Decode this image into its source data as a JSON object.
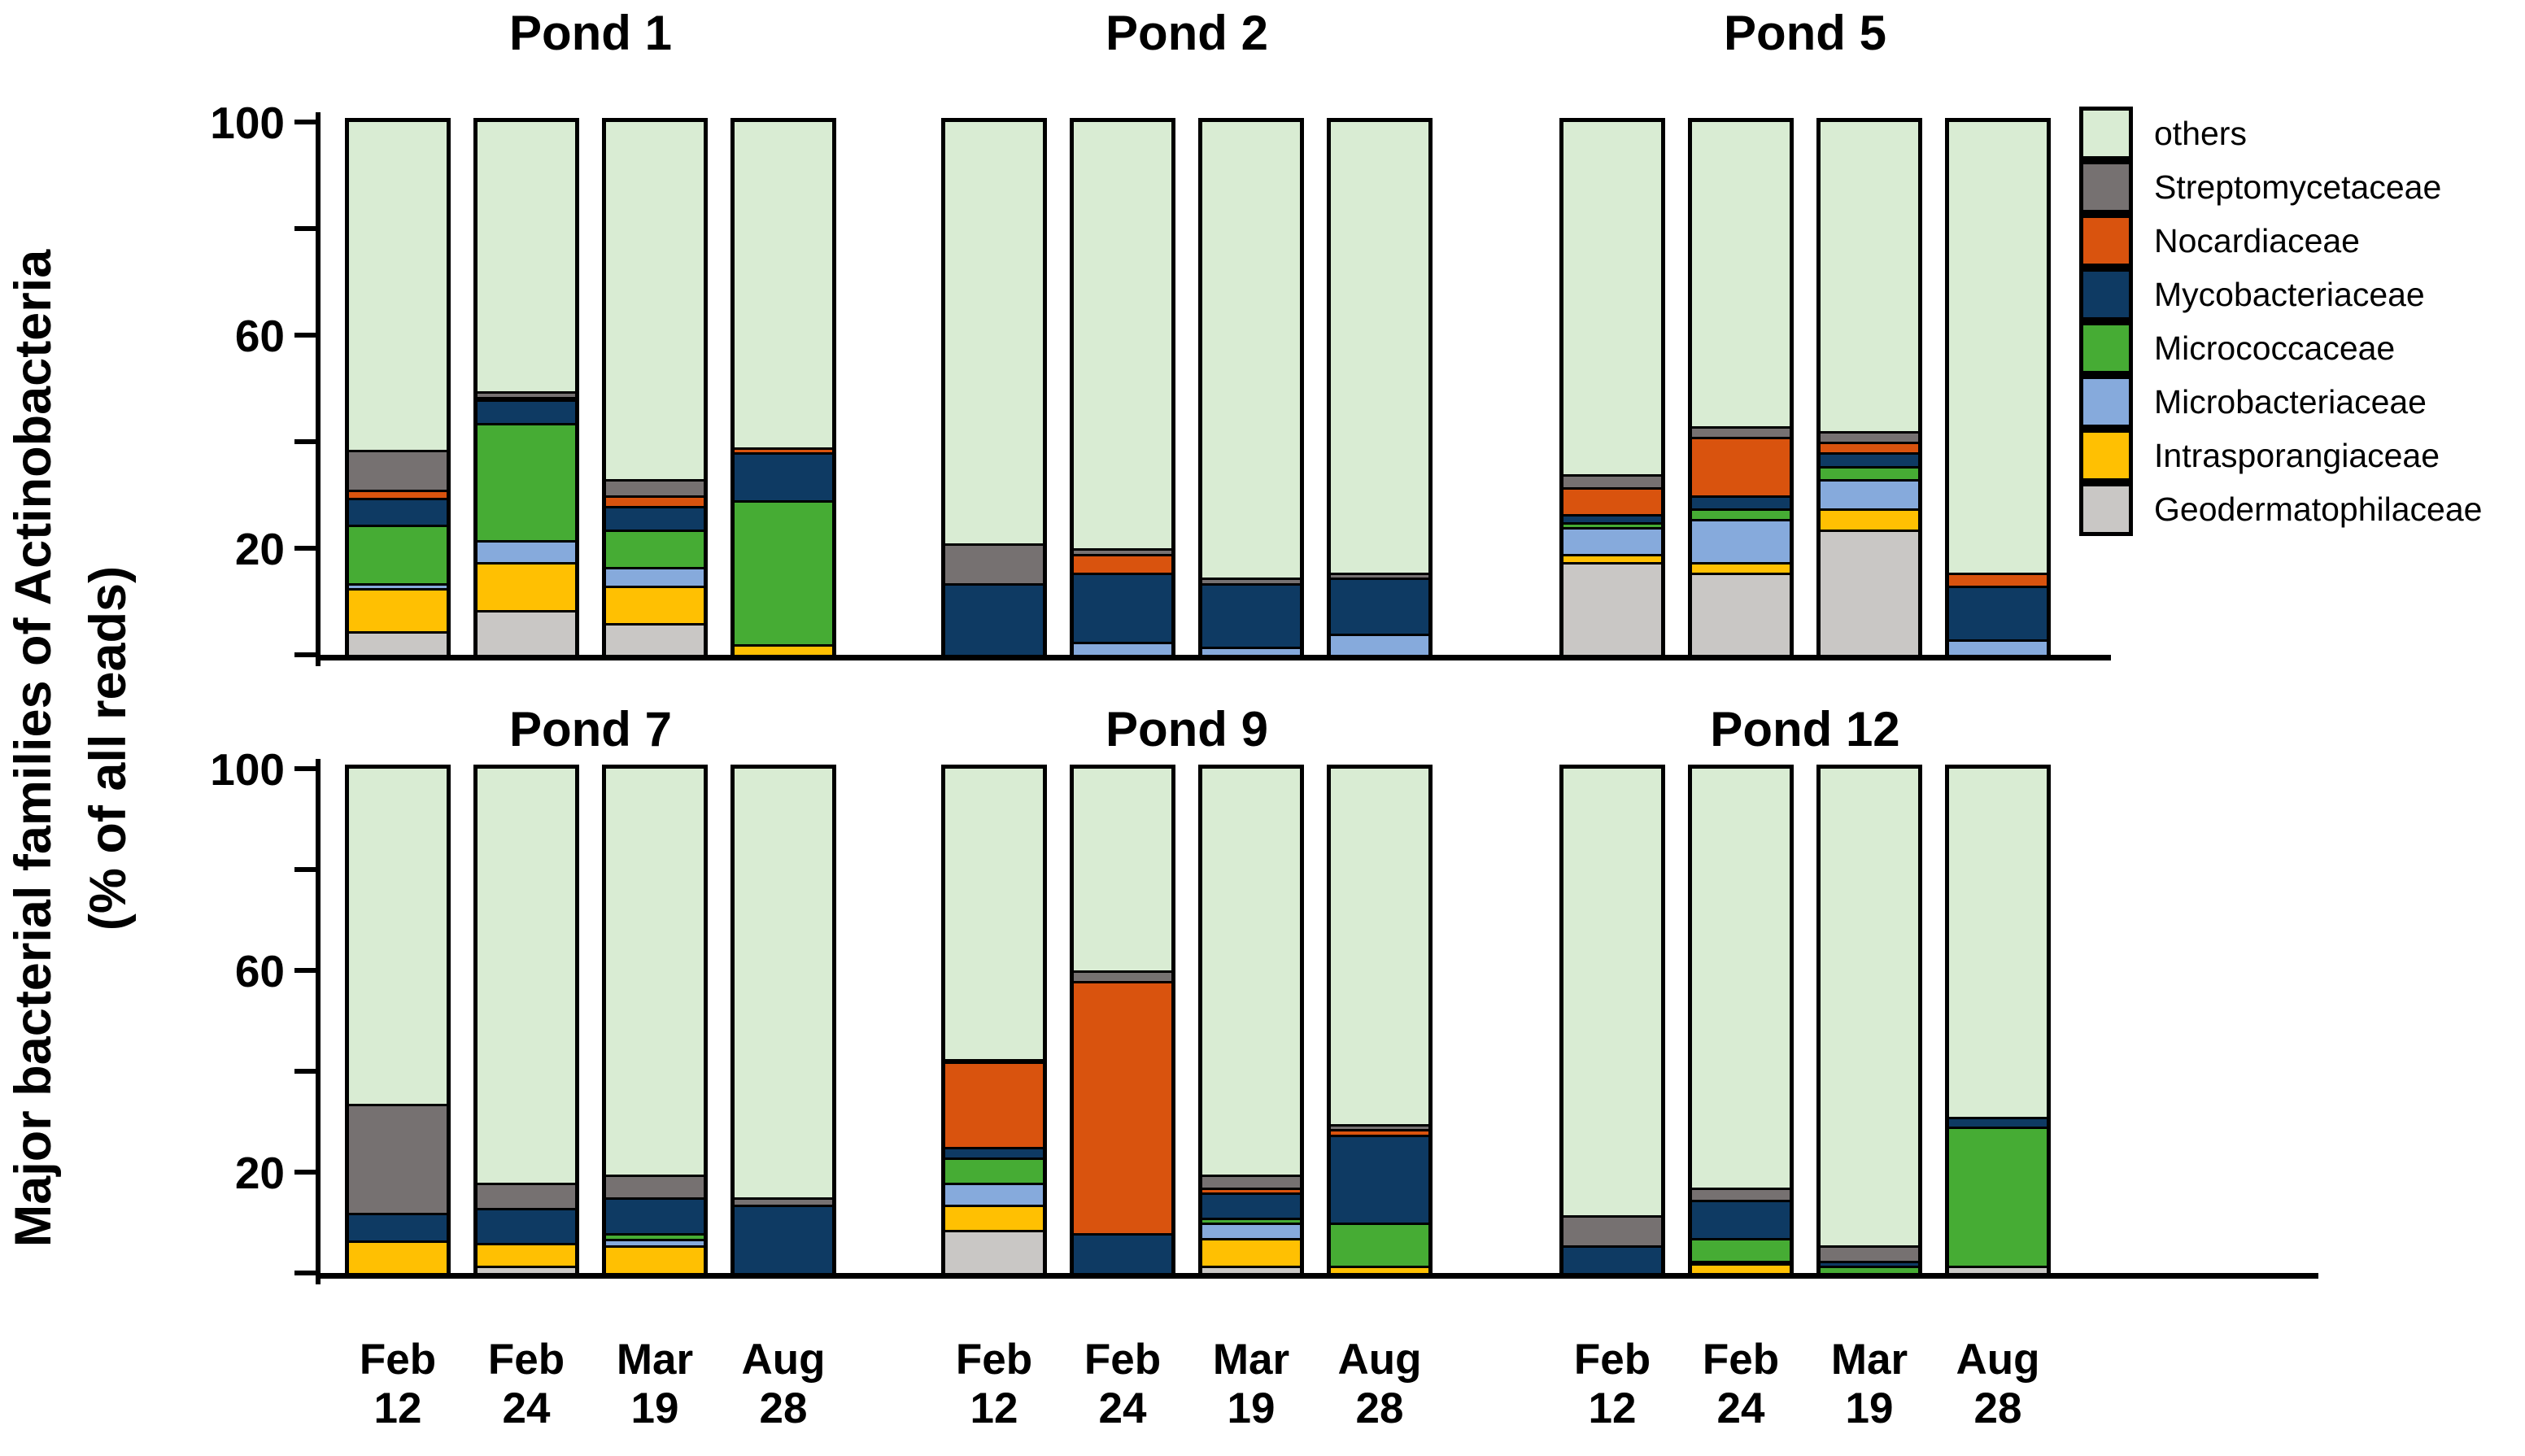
{
  "figure": {
    "ylabel_line1": "Major bacterial families of Actinobacteria",
    "ylabel_line2": "(% of all reads)"
  },
  "chart_data": {
    "type": "bar",
    "stacked": true,
    "orientation": "vertical",
    "ylabel": "Major bacterial families of Actinobacteria (% of all reads)",
    "ylim": [
      0,
      100
    ],
    "y_major_tick_labels": [
      "100",
      "60",
      "20"
    ],
    "y_tick_values": [
      100,
      80,
      60,
      40,
      20,
      0
    ],
    "grid": false,
    "legend_position": "top-right",
    "legend": [
      {
        "label": "others",
        "color": "#d9ecd3"
      },
      {
        "label": "Streptomycetaceae",
        "color": "#767171"
      },
      {
        "label": "Nocardiaceae",
        "color": "#d9530e"
      },
      {
        "label": "Mycobacteriaceae",
        "color": "#0e3a63"
      },
      {
        "label": "Micrococcaceae",
        "color": "#46ac34"
      },
      {
        "label": "Microbacteriaceae",
        "color": "#86aadc"
      },
      {
        "label": "Intrasporangiaceae",
        "color": "#ffc002"
      },
      {
        "label": "Geodermatophilaceae",
        "color": "#c9c7c5"
      }
    ],
    "stack_order_bottom_to_top": [
      "Geodermatophilaceae",
      "Intrasporangiaceae",
      "Microbacteriaceae",
      "Micrococcaceae",
      "Mycobacteriaceae",
      "Nocardiaceae",
      "Streptomycetaceae",
      "others"
    ],
    "categories": [
      "Feb 12",
      "Feb 24",
      "Mar 19",
      "Aug 28"
    ],
    "panels": [
      {
        "title": "Pond 1",
        "row": 0,
        "values_pct": [
          [
            4,
            8,
            1,
            11,
            5,
            1.5,
            7.5,
            62
          ],
          [
            8,
            9,
            4,
            22,
            4.5,
            0.5,
            1,
            51
          ],
          [
            5.5,
            7,
            3.5,
            7,
            4.5,
            2,
            3,
            67.5
          ],
          [
            0,
            1.5,
            0,
            27,
            9,
            1,
            0,
            61.5
          ]
        ]
      },
      {
        "title": "Pond 2",
        "row": 0,
        "values_pct": [
          [
            0,
            0,
            0,
            0,
            13,
            0,
            7.5,
            79.5
          ],
          [
            0,
            0,
            2,
            0,
            13,
            3.5,
            1,
            80.5
          ],
          [
            0,
            0,
            1,
            0,
            12,
            0,
            1,
            86
          ],
          [
            0,
            0,
            3.5,
            0,
            10.5,
            0,
            1,
            85
          ]
        ]
      },
      {
        "title": "Pond 5",
        "row": 0,
        "values_pct": [
          [
            17,
            1.5,
            5,
            1,
            1.5,
            5,
            2.5,
            66.5
          ],
          [
            15,
            2,
            8,
            2,
            2.5,
            11,
            2,
            57.5
          ],
          [
            23,
            4,
            5.5,
            2.5,
            2.5,
            2,
            2,
            58.5
          ],
          [
            0,
            0,
            2.5,
            0,
            10,
            2.5,
            0,
            85
          ]
        ]
      },
      {
        "title": "Pond 7",
        "row": 1,
        "values_pct": [
          [
            0,
            6,
            0,
            0,
            5.5,
            0,
            21.5,
            67
          ],
          [
            1,
            4.5,
            0,
            0,
            7,
            0,
            5,
            82.5
          ],
          [
            0,
            5,
            1.3,
            1.2,
            7,
            0,
            4.5,
            81
          ],
          [
            0,
            0,
            0,
            0,
            13,
            0,
            1.5,
            85.5
          ]
        ]
      },
      {
        "title": "Pond 9",
        "row": 1,
        "values_pct": [
          [
            8,
            5,
            4.5,
            5,
            2,
            17,
            0.5,
            58
          ],
          [
            0,
            0,
            0,
            0,
            7.5,
            50,
            2,
            40.5
          ],
          [
            1,
            5.5,
            3,
            1,
            5,
            1,
            2.5,
            81
          ],
          [
            0,
            1,
            0,
            8.5,
            17.5,
            1,
            1,
            71
          ]
        ]
      },
      {
        "title": "Pond 12",
        "row": 1,
        "values_pct": [
          [
            0,
            0,
            0,
            0,
            5,
            0,
            6,
            89
          ],
          [
            0,
            1.5,
            0.5,
            4.5,
            7.5,
            0,
            2.5,
            83.5
          ],
          [
            0,
            0,
            0,
            1,
            1,
            0,
            3,
            95
          ],
          [
            1,
            0,
            0,
            27.5,
            2,
            0,
            0,
            69.5
          ]
        ]
      }
    ]
  }
}
